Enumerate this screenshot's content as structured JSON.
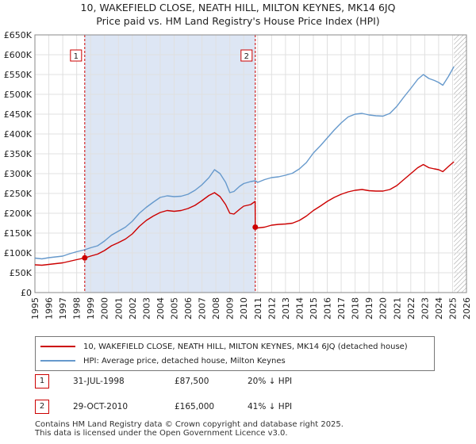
{
  "title": "10, WAKEFIELD CLOSE, NEATH HILL, MILTON KEYNES, MK14 6JQ",
  "subtitle": "Price paid vs. HM Land Registry's House Price Index (HPI)",
  "chart_data": {
    "type": "line",
    "x_ticks": [
      "1995",
      "1996",
      "1997",
      "1998",
      "1999",
      "2000",
      "2001",
      "2002",
      "2003",
      "2004",
      "2005",
      "2006",
      "2007",
      "2008",
      "2009",
      "2010",
      "2011",
      "2012",
      "2013",
      "2014",
      "2015",
      "2016",
      "2017",
      "2018",
      "2019",
      "2020",
      "2021",
      "2022",
      "2023",
      "2024",
      "2025",
      "2026"
    ],
    "y_ticks": [
      "£0",
      "£50K",
      "£100K",
      "£150K",
      "£200K",
      "£250K",
      "£300K",
      "£350K",
      "£400K",
      "£450K",
      "£500K",
      "£550K",
      "£600K",
      "£650K"
    ],
    "xlim": [
      1995,
      2026
    ],
    "ylim": [
      0,
      650000
    ],
    "hatch_from": 2025.1,
    "colors": {
      "property": "#cc0000",
      "hpi": "#6699cc",
      "shade": "#dde6f4"
    },
    "series": [
      {
        "name": "10, WAKEFIELD CLOSE, NEATH HILL, MILTON KEYNES, MK14 6JQ (detached house)",
        "color": "#cc0000",
        "points": [
          [
            1995.0,
            70000
          ],
          [
            1995.5,
            69000
          ],
          [
            1996.0,
            71000
          ],
          [
            1996.5,
            73000
          ],
          [
            1997.0,
            75000
          ],
          [
            1997.5,
            79000
          ],
          [
            1998.0,
            83000
          ],
          [
            1998.58,
            87500
          ],
          [
            1999.0,
            92000
          ],
          [
            1999.5,
            97000
          ],
          [
            2000.0,
            106000
          ],
          [
            2000.5,
            118000
          ],
          [
            2001.0,
            126000
          ],
          [
            2001.5,
            135000
          ],
          [
            2002.0,
            148000
          ],
          [
            2002.5,
            167000
          ],
          [
            2003.0,
            182000
          ],
          [
            2003.5,
            193000
          ],
          [
            2004.0,
            202000
          ],
          [
            2004.5,
            207000
          ],
          [
            2005.0,
            205000
          ],
          [
            2005.5,
            207000
          ],
          [
            2006.0,
            212000
          ],
          [
            2006.5,
            220000
          ],
          [
            2007.0,
            232000
          ],
          [
            2007.5,
            245000
          ],
          [
            2007.9,
            252000
          ],
          [
            2008.3,
            242000
          ],
          [
            2008.7,
            222000
          ],
          [
            2009.0,
            200000
          ],
          [
            2009.3,
            198000
          ],
          [
            2009.7,
            210000
          ],
          [
            2010.0,
            218000
          ],
          [
            2010.5,
            222000
          ],
          [
            2010.82,
            230000
          ],
          [
            2010.83,
            165000
          ],
          [
            2011.0,
            163000
          ],
          [
            2011.5,
            165000
          ],
          [
            2012.0,
            170000
          ],
          [
            2012.5,
            172000
          ],
          [
            2013.0,
            173000
          ],
          [
            2013.5,
            175000
          ],
          [
            2014.0,
            182000
          ],
          [
            2014.5,
            193000
          ],
          [
            2015.0,
            207000
          ],
          [
            2015.5,
            218000
          ],
          [
            2016.0,
            230000
          ],
          [
            2016.5,
            240000
          ],
          [
            2017.0,
            248000
          ],
          [
            2017.5,
            254000
          ],
          [
            2018.0,
            258000
          ],
          [
            2018.5,
            260000
          ],
          [
            2019.0,
            257000
          ],
          [
            2019.5,
            256000
          ],
          [
            2020.0,
            256000
          ],
          [
            2020.5,
            260000
          ],
          [
            2021.0,
            270000
          ],
          [
            2021.5,
            285000
          ],
          [
            2022.0,
            300000
          ],
          [
            2022.5,
            315000
          ],
          [
            2022.9,
            323000
          ],
          [
            2023.3,
            315000
          ],
          [
            2023.7,
            312000
          ],
          [
            2024.0,
            310000
          ],
          [
            2024.3,
            305000
          ],
          [
            2024.7,
            318000
          ],
          [
            2025.1,
            330000
          ]
        ]
      },
      {
        "name": "HPI: Average price, detached house, Milton Keynes",
        "color": "#6699cc",
        "points": [
          [
            1995.0,
            87000
          ],
          [
            1995.5,
            85000
          ],
          [
            1996.0,
            88000
          ],
          [
            1996.5,
            90000
          ],
          [
            1997.0,
            92000
          ],
          [
            1997.5,
            98000
          ],
          [
            1998.0,
            103000
          ],
          [
            1998.58,
            108000
          ],
          [
            1999.0,
            113000
          ],
          [
            1999.5,
            118000
          ],
          [
            2000.0,
            130000
          ],
          [
            2000.5,
            145000
          ],
          [
            2001.0,
            155000
          ],
          [
            2001.5,
            165000
          ],
          [
            2002.0,
            180000
          ],
          [
            2002.5,
            200000
          ],
          [
            2003.0,
            215000
          ],
          [
            2003.5,
            228000
          ],
          [
            2004.0,
            240000
          ],
          [
            2004.5,
            244000
          ],
          [
            2005.0,
            242000
          ],
          [
            2005.5,
            243000
          ],
          [
            2006.0,
            248000
          ],
          [
            2006.5,
            258000
          ],
          [
            2007.0,
            272000
          ],
          [
            2007.5,
            290000
          ],
          [
            2007.9,
            310000
          ],
          [
            2008.3,
            300000
          ],
          [
            2008.7,
            278000
          ],
          [
            2009.0,
            252000
          ],
          [
            2009.3,
            255000
          ],
          [
            2009.7,
            268000
          ],
          [
            2010.0,
            275000
          ],
          [
            2010.5,
            280000
          ],
          [
            2010.83,
            282000
          ],
          [
            2011.0,
            278000
          ],
          [
            2011.5,
            285000
          ],
          [
            2012.0,
            290000
          ],
          [
            2012.5,
            292000
          ],
          [
            2013.0,
            296000
          ],
          [
            2013.5,
            301000
          ],
          [
            2014.0,
            312000
          ],
          [
            2014.5,
            328000
          ],
          [
            2015.0,
            352000
          ],
          [
            2015.5,
            370000
          ],
          [
            2016.0,
            390000
          ],
          [
            2016.5,
            410000
          ],
          [
            2017.0,
            428000
          ],
          [
            2017.5,
            443000
          ],
          [
            2018.0,
            450000
          ],
          [
            2018.5,
            452000
          ],
          [
            2019.0,
            448000
          ],
          [
            2019.5,
            446000
          ],
          [
            2020.0,
            445000
          ],
          [
            2020.5,
            452000
          ],
          [
            2021.0,
            470000
          ],
          [
            2021.5,
            493000
          ],
          [
            2022.0,
            515000
          ],
          [
            2022.5,
            538000
          ],
          [
            2022.9,
            550000
          ],
          [
            2023.3,
            540000
          ],
          [
            2023.7,
            535000
          ],
          [
            2024.0,
            530000
          ],
          [
            2024.3,
            523000
          ],
          [
            2024.7,
            545000
          ],
          [
            2025.1,
            570000
          ]
        ]
      }
    ],
    "annotations": [
      {
        "label": "1",
        "x": 1998.58,
        "y": 87500
      },
      {
        "label": "2",
        "x": 2010.83,
        "y": 165000
      }
    ]
  },
  "legend": {
    "property": "10, WAKEFIELD CLOSE, NEATH HILL, MILTON KEYNES, MK14 6JQ (detached house)",
    "hpi": "HPI: Average price, detached house, Milton Keynes"
  },
  "sales": [
    {
      "num": "1",
      "date": "31-JUL-1998",
      "price": "£87,500",
      "hpi": "20% ↓ HPI"
    },
    {
      "num": "2",
      "date": "29-OCT-2010",
      "price": "£165,000",
      "hpi": "41% ↓ HPI"
    }
  ],
  "footer": {
    "line1": "Contains HM Land Registry data © Crown copyright and database right 2025.",
    "line2": "This data is licensed under the Open Government Licence v3.0."
  }
}
